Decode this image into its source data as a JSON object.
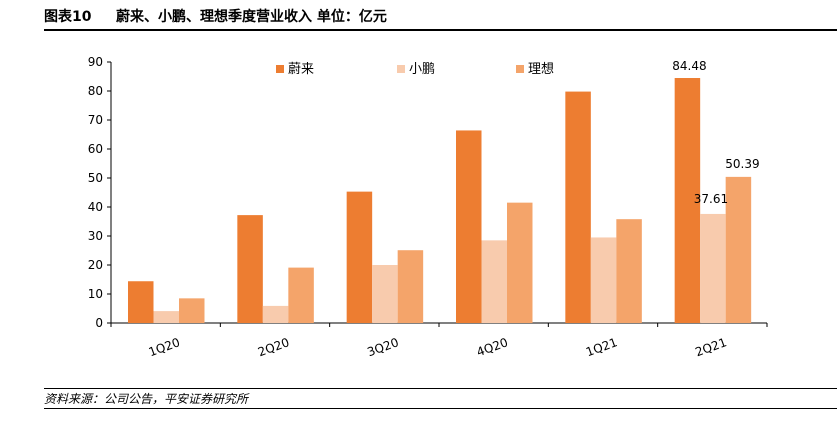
{
  "header": {
    "figure_label": "图表10",
    "title": "蔚来、小鹏、理想季度营业收入   单位：亿元"
  },
  "footer": {
    "source": "资料来源：公司公告，平安证券研究所"
  },
  "chart_data": {
    "type": "bar",
    "title": "蔚来、小鹏、理想季度营业收入",
    "unit": "亿元",
    "categories": [
      "1Q20",
      "2Q20",
      "3Q20",
      "4Q20",
      "1Q21",
      "2Q21"
    ],
    "series": [
      {
        "name": "蔚来",
        "color": "#ED7D31",
        "values": [
          14.4,
          37.2,
          45.3,
          66.4,
          79.8,
          84.48
        ]
      },
      {
        "name": "小鹏",
        "color": "#F8CBAD",
        "values": [
          4.1,
          5.9,
          20.0,
          28.5,
          29.5,
          37.61
        ]
      },
      {
        "name": "理想",
        "color": "#F4A46A",
        "values": [
          8.5,
          19.1,
          25.1,
          41.5,
          35.8,
          50.39
        ]
      }
    ],
    "data_labels": [
      {
        "series": "蔚来",
        "category": "2Q21",
        "text": "84.48"
      },
      {
        "series": "小鹏",
        "category": "2Q21",
        "text": "37.61"
      },
      {
        "series": "理想",
        "category": "2Q21",
        "text": "50.39"
      }
    ],
    "ylim": [
      0,
      90
    ],
    "yticks": [
      0,
      10,
      20,
      30,
      40,
      50,
      60,
      70,
      80,
      90
    ],
    "grid": false,
    "legend_position": "top-center"
  }
}
